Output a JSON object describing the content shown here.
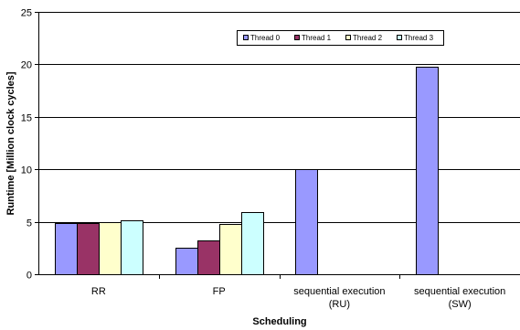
{
  "chart_data": {
    "type": "bar",
    "title": "",
    "xlabel": "Scheduling",
    "ylabel": "Runtime [Million clock cycles]",
    "ylim": [
      0,
      25
    ],
    "yticks": [
      "0",
      "5",
      "10",
      "15",
      "20",
      "25"
    ],
    "grid": true,
    "legend_position": "top-right",
    "categories": [
      [
        "RR"
      ],
      [
        "FP"
      ],
      [
        "sequential execution",
        "(RU)"
      ],
      [
        "sequential execution",
        "(SW)"
      ]
    ],
    "series": [
      {
        "name": "Thread 0",
        "color": "#9999ff",
        "values": [
          4.9,
          2.5,
          10.0,
          19.8
        ]
      },
      {
        "name": "Thread 1",
        "color": "#993366",
        "values": [
          4.9,
          3.2,
          null,
          null
        ]
      },
      {
        "name": "Thread 2",
        "color": "#ffffcc",
        "values": [
          5.0,
          4.8,
          null,
          null
        ]
      },
      {
        "name": "Thread 3",
        "color": "#ccffff",
        "values": [
          5.1,
          5.9,
          null,
          null
        ]
      }
    ]
  }
}
